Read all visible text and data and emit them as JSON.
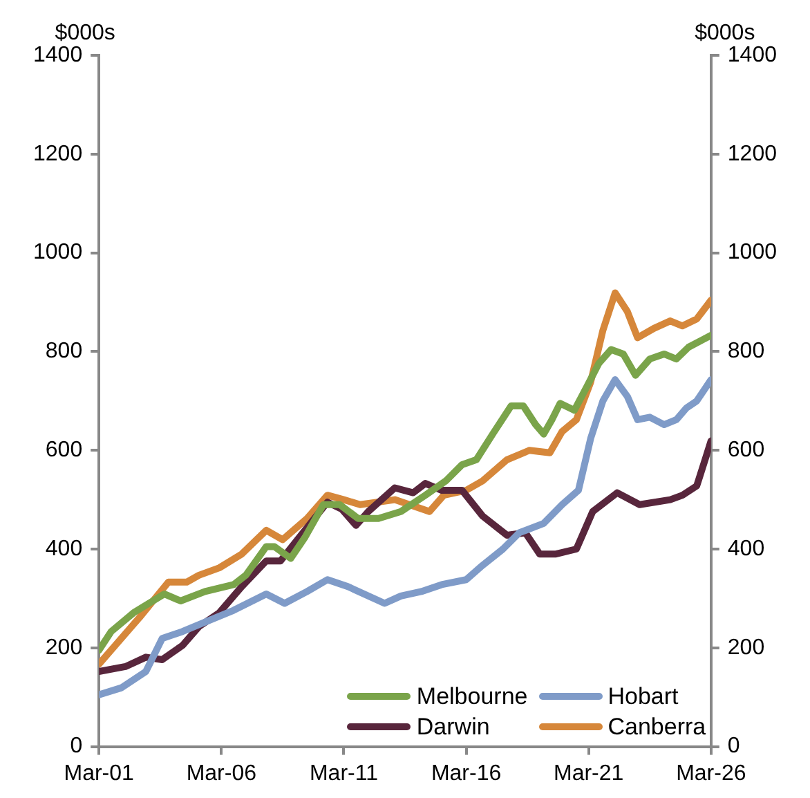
{
  "chart_data": {
    "type": "line",
    "ylabel": "$000s",
    "y2label": "$000s",
    "xlim": [
      "2001-03",
      "2026-03"
    ],
    "xticks": [
      {
        "value": "2001-03",
        "label": "Mar-01"
      },
      {
        "value": "2006-03",
        "label": "Mar-06"
      },
      {
        "value": "2011-03",
        "label": "Mar-11"
      },
      {
        "value": "2016-03",
        "label": "Mar-16"
      },
      {
        "value": "2021-03",
        "label": "Mar-21"
      },
      {
        "value": "2026-03",
        "label": "Mar-26"
      }
    ],
    "ylim": [
      0,
      1400
    ],
    "yticks": [
      0,
      200,
      400,
      600,
      800,
      1000,
      1200,
      1400
    ],
    "y2lim": [
      0,
      1400
    ],
    "y2ticks": [
      0,
      200,
      400,
      600,
      800,
      1000,
      1200,
      1400
    ],
    "legend": "bottom right",
    "series": [
      {
        "name": "Melbourne",
        "color": "#7aa44a",
        "x": [
          "2001-03",
          "2001-09",
          "2002-08",
          "2003-11",
          "2004-07",
          "2005-07",
          "2006-09",
          "2007-03",
          "2008-01",
          "2008-05",
          "2009-01",
          "2009-08",
          "2010-05",
          "2011-01",
          "2011-10",
          "2012-08",
          "2013-07",
          "2014-07",
          "2015-05",
          "2016-01",
          "2016-08",
          "2017-04",
          "2018-01",
          "2018-07",
          "2019-01",
          "2019-05",
          "2019-09",
          "2020-01",
          "2020-08",
          "2021-02",
          "2021-08",
          "2022-02",
          "2022-08",
          "2023-02",
          "2023-09",
          "2024-04",
          "2024-10",
          "2025-04",
          "2026-03"
        ],
        "values": [
          195,
          233,
          271,
          309,
          295,
          314,
          328,
          347,
          405,
          405,
          381,
          424,
          490,
          490,
          462,
          462,
          476,
          509,
          538,
          571,
          581,
          633,
          690,
          690,
          652,
          633,
          662,
          695,
          681,
          728,
          776,
          804,
          795,
          752,
          785,
          795,
          785,
          809,
          833
        ]
      },
      {
        "name": "Hobart",
        "color": "#7f9bc8",
        "x": [
          "2001-03",
          "2002-02",
          "2003-02",
          "2003-10",
          "2004-08",
          "2005-07",
          "2006-09",
          "2008-01",
          "2008-10",
          "2009-09",
          "2010-07",
          "2011-05",
          "2012-11",
          "2013-07",
          "2014-05",
          "2015-03",
          "2016-03",
          "2016-11",
          "2017-09",
          "2018-05",
          "2019-05",
          "2020-02",
          "2020-10",
          "2021-04",
          "2021-10",
          "2022-04",
          "2022-10",
          "2023-03",
          "2023-09",
          "2024-04",
          "2024-10",
          "2025-03",
          "2025-08",
          "2026-03"
        ],
        "values": [
          105,
          119,
          152,
          219,
          233,
          252,
          276,
          309,
          290,
          314,
          338,
          324,
          290,
          305,
          314,
          328,
          338,
          367,
          400,
          433,
          452,
          490,
          519,
          624,
          700,
          743,
          709,
          662,
          667,
          652,
          662,
          686,
          700,
          743
        ]
      },
      {
        "name": "Darwin",
        "color": "#58263c",
        "x": [
          "2001-03",
          "2002-04",
          "2003-02",
          "2003-10",
          "2004-08",
          "2005-04",
          "2006-02",
          "2007-01",
          "2008-01",
          "2008-08",
          "2009-07",
          "2010-07",
          "2011-02",
          "2011-09",
          "2012-03",
          "2013-04",
          "2014-01",
          "2014-07",
          "2015-03",
          "2016-01",
          "2016-11",
          "2017-11",
          "2018-08",
          "2019-03",
          "2019-11",
          "2020-09",
          "2021-05",
          "2022-05",
          "2023-04",
          "2024-07",
          "2025-01",
          "2025-08",
          "2026-03"
        ],
        "values": [
          152,
          162,
          181,
          176,
          205,
          243,
          271,
          324,
          376,
          376,
          433,
          495,
          481,
          448,
          476,
          524,
          514,
          533,
          519,
          519,
          467,
          428,
          433,
          390,
          390,
          400,
          476,
          514,
          490,
          500,
          509,
          528,
          619
        ]
      },
      {
        "name": "Canberra",
        "color": "#d6873a",
        "x": [
          "2001-03",
          "2001-11",
          "2002-11",
          "2004-01",
          "2004-10",
          "2005-04",
          "2006-02",
          "2007-01",
          "2008-01",
          "2008-09",
          "2009-09",
          "2010-07",
          "2011-03",
          "2011-11",
          "2013-04",
          "2014-09",
          "2015-04",
          "2016-03",
          "2016-11",
          "2017-11",
          "2018-10",
          "2019-08",
          "2020-02",
          "2020-09",
          "2021-04",
          "2021-10",
          "2022-04",
          "2022-10",
          "2023-03",
          "2023-11",
          "2024-07",
          "2025-01",
          "2025-08",
          "2026-03"
        ],
        "values": [
          167,
          205,
          262,
          333,
          333,
          347,
          362,
          390,
          438,
          419,
          462,
          509,
          500,
          490,
          500,
          476,
          509,
          519,
          538,
          581,
          600,
          595,
          638,
          662,
          738,
          843,
          919,
          881,
          828,
          847,
          862,
          852,
          866,
          904
        ]
      }
    ]
  }
}
